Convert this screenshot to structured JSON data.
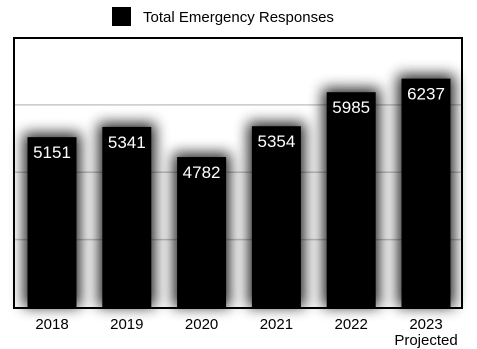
{
  "chart_data": {
    "type": "bar",
    "categories": [
      "2018",
      "2019",
      "2020",
      "2021",
      "2022",
      "2023\nProjected"
    ],
    "series": [
      {
        "name": "Total Emergency Responses",
        "values": [
          5151,
          5341,
          4782,
          5354,
          5985,
          6237
        ]
      }
    ],
    "ylim": [
      2000,
      7000
    ],
    "grid": true,
    "legend": "top",
    "colors": {
      "bar": "#000000",
      "grid": "#c8c8c8",
      "frame": "#000000",
      "label": "#ffffff"
    }
  }
}
